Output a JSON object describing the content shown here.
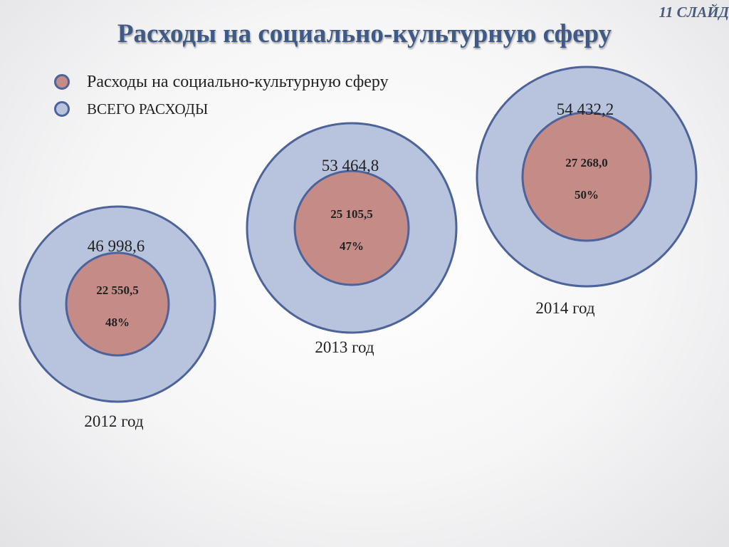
{
  "slide": {
    "number_label": "11 СЛАЙД",
    "title": "Расходы на социально-культурную сферу"
  },
  "legend": [
    {
      "label": "Расходы на социально-культурную сферу",
      "color": "#c48b87"
    },
    {
      "label": "ВСЕГО РАСХОДЫ",
      "color": "#b8c4de"
    }
  ],
  "colors": {
    "outer_fill": "#b8c4de",
    "inner_fill": "#c48b87",
    "stroke": "#4d6399"
  },
  "chart_data": {
    "type": "nested-bubble",
    "categories": [
      "2012 год",
      "2013 год",
      "2014 год"
    ],
    "series": [
      {
        "name": "ВСЕГО РАСХОДЫ",
        "values": [
          46998.6,
          53464.8,
          54432.2
        ],
        "labels": [
          "46 998,6",
          "53 464,8",
          "54 432,2"
        ]
      },
      {
        "name": "Расходы на социально-культурную сферу",
        "values": [
          22550.5,
          25105.5,
          27268.0
        ],
        "labels": [
          "22 550,5",
          "25 105,5",
          "27 268,0"
        ]
      }
    ],
    "shares": [
      "48%",
      "47%",
      "50%"
    ],
    "title": "Расходы на социально-культурную сферу"
  }
}
